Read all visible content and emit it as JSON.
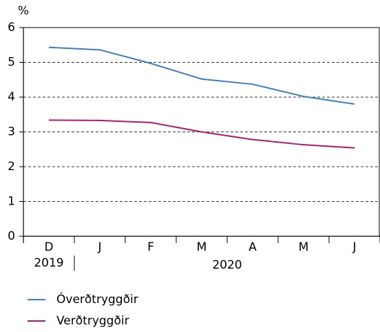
{
  "chart_data": {
    "type": "line",
    "y_label": "%",
    "categories": [
      "D",
      "J",
      "F",
      "M",
      "A",
      "M",
      "J"
    ],
    "years": [
      "2019",
      "2020"
    ],
    "series": [
      {
        "name": "Óverðtryggðir",
        "color": "#3a7cc4",
        "values": [
          5.43,
          5.36,
          4.97,
          4.52,
          4.37,
          4.02,
          3.8
        ]
      },
      {
        "name": "Verðtryggðir",
        "color": "#b5166b",
        "values": [
          3.34,
          3.33,
          3.27,
          3.0,
          2.78,
          2.63,
          2.54
        ]
      }
    ],
    "ylim": [
      0,
      6
    ],
    "yticks": [
      0,
      1,
      2,
      3,
      4,
      5,
      6
    ],
    "grid": true,
    "legend": "bottom"
  }
}
